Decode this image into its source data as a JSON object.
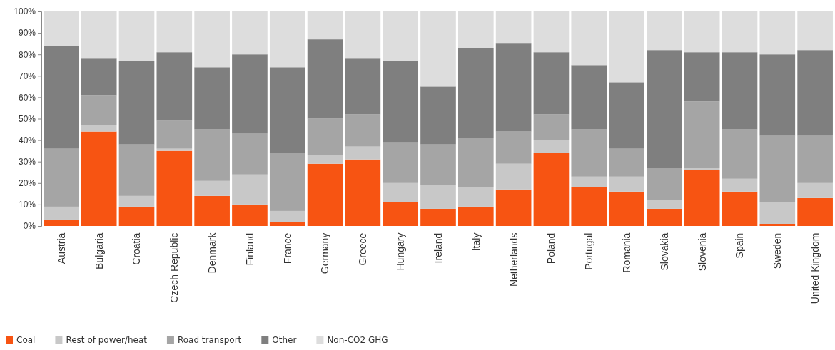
{
  "chart_data": {
    "type": "bar",
    "stacked": true,
    "legend": "bottom",
    "grid": false,
    "categories": [
      "Austria",
      "Bulgaria",
      "Croatia",
      "Czech Republic",
      "Denmark",
      "Finland",
      "France",
      "Germany",
      "Greece",
      "Hungary",
      "Ireland",
      "Italy",
      "Netherlands",
      "Poland",
      "Portugal",
      "Romania",
      "Slovakia",
      "Slovenia",
      "Spain",
      "Sweden",
      "United Kingdom"
    ],
    "ylim": [
      0,
      100
    ],
    "yticks": [
      {
        "value": 0,
        "label": "0%"
      },
      {
        "value": 10,
        "label": "10%"
      },
      {
        "value": 20,
        "label": "20%"
      },
      {
        "value": 30,
        "label": "30%"
      },
      {
        "value": 40,
        "label": "40%"
      },
      {
        "value": 50,
        "label": "50%"
      },
      {
        "value": 60,
        "label": "60%"
      },
      {
        "value": 70,
        "label": "70%"
      },
      {
        "value": 80,
        "label": "80%"
      },
      {
        "value": 90,
        "label": "90%"
      },
      {
        "value": 100,
        "label": "100%"
      }
    ],
    "series": [
      {
        "name": "Coal",
        "color": "#f75412",
        "values": [
          3,
          44,
          9,
          35,
          14,
          10,
          2,
          29,
          31,
          11,
          8,
          9,
          17,
          34,
          18,
          16,
          8,
          26,
          16,
          1,
          13
        ]
      },
      {
        "name": "Rest of power/heat",
        "color": "#c8c8c8",
        "values": [
          6,
          3,
          5,
          1,
          7,
          14,
          5,
          4,
          6,
          9,
          11,
          9,
          12,
          6,
          5,
          7,
          4,
          1,
          6,
          10,
          7
        ]
      },
      {
        "name": "Road transport",
        "color": "#a5a5a5",
        "values": [
          27,
          14,
          24,
          13,
          24,
          19,
          27,
          17,
          15,
          19,
          19,
          23,
          15,
          12,
          22,
          13,
          15,
          31,
          23,
          31,
          22
        ]
      },
      {
        "name": "Other",
        "color": "#7f7f7f",
        "values": [
          48,
          17,
          39,
          32,
          29,
          37,
          40,
          37,
          26,
          38,
          27,
          42,
          41,
          29,
          30,
          31,
          55,
          23,
          36,
          38,
          40
        ]
      },
      {
        "name": "Non-CO2 GHG",
        "color": "#dddddd",
        "values": [
          16,
          22,
          23,
          19,
          26,
          20,
          26,
          13,
          22,
          23,
          35,
          17,
          15,
          19,
          25,
          33,
          18,
          19,
          19,
          20,
          18
        ]
      }
    ]
  }
}
